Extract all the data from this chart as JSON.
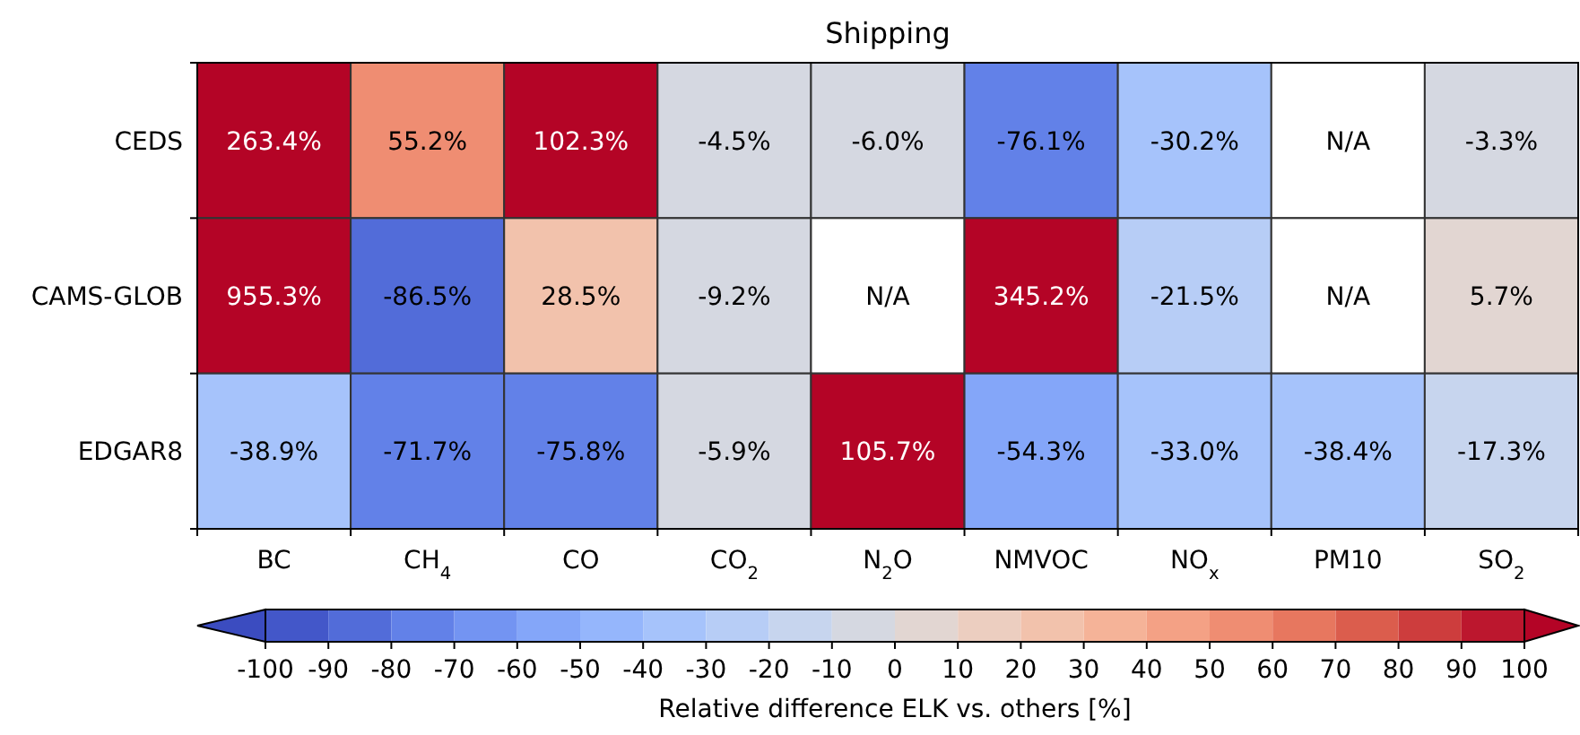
{
  "chart_data": {
    "type": "heatmap",
    "title": "Shipping",
    "categories": [
      "BC",
      "CH$_{4}$",
      "CO",
      "CO$_{2}$",
      "N$_{2}$O",
      "NMVOC",
      "NO$_{x}$",
      "PM10",
      "SO$_{2}$"
    ],
    "y_categories": [
      "CEDS",
      "CAMS-GLOB",
      "EDGAR8"
    ],
    "cells": [
      [
        263.4,
        55.2,
        102.3,
        -4.5,
        -6.0,
        -76.1,
        -30.2,
        null,
        -3.3
      ],
      [
        955.3,
        -86.5,
        28.5,
        -9.2,
        null,
        345.2,
        -21.5,
        null,
        5.7
      ],
      [
        -38.9,
        -71.7,
        -75.8,
        -5.9,
        105.7,
        -54.3,
        -33.0,
        -38.4,
        -17.3
      ]
    ],
    "cell_labels": [
      [
        "263.4%",
        "55.2%",
        "102.3%",
        "-4.5%",
        "-6.0%",
        "-76.1%",
        "-30.2%",
        "N/A",
        "-3.3%"
      ],
      [
        "955.3%",
        "-86.5%",
        "28.5%",
        "-9.2%",
        "N/A",
        "345.2%",
        "-21.5%",
        "N/A",
        "5.7%"
      ],
      [
        "-38.9%",
        "-71.7%",
        "-75.8%",
        "-5.9%",
        "105.7%",
        "-54.3%",
        "-33.0%",
        "-38.4%",
        "-17.3%"
      ]
    ],
    "clim": [
      -100,
      100
    ],
    "cticks": [
      -100,
      -90,
      -80,
      -70,
      -60,
      -50,
      -40,
      -30,
      -20,
      -10,
      0,
      10,
      20,
      30,
      40,
      50,
      60,
      70,
      80,
      90,
      100
    ],
    "clabel": "Relative difference ELK vs. others [%]"
  }
}
